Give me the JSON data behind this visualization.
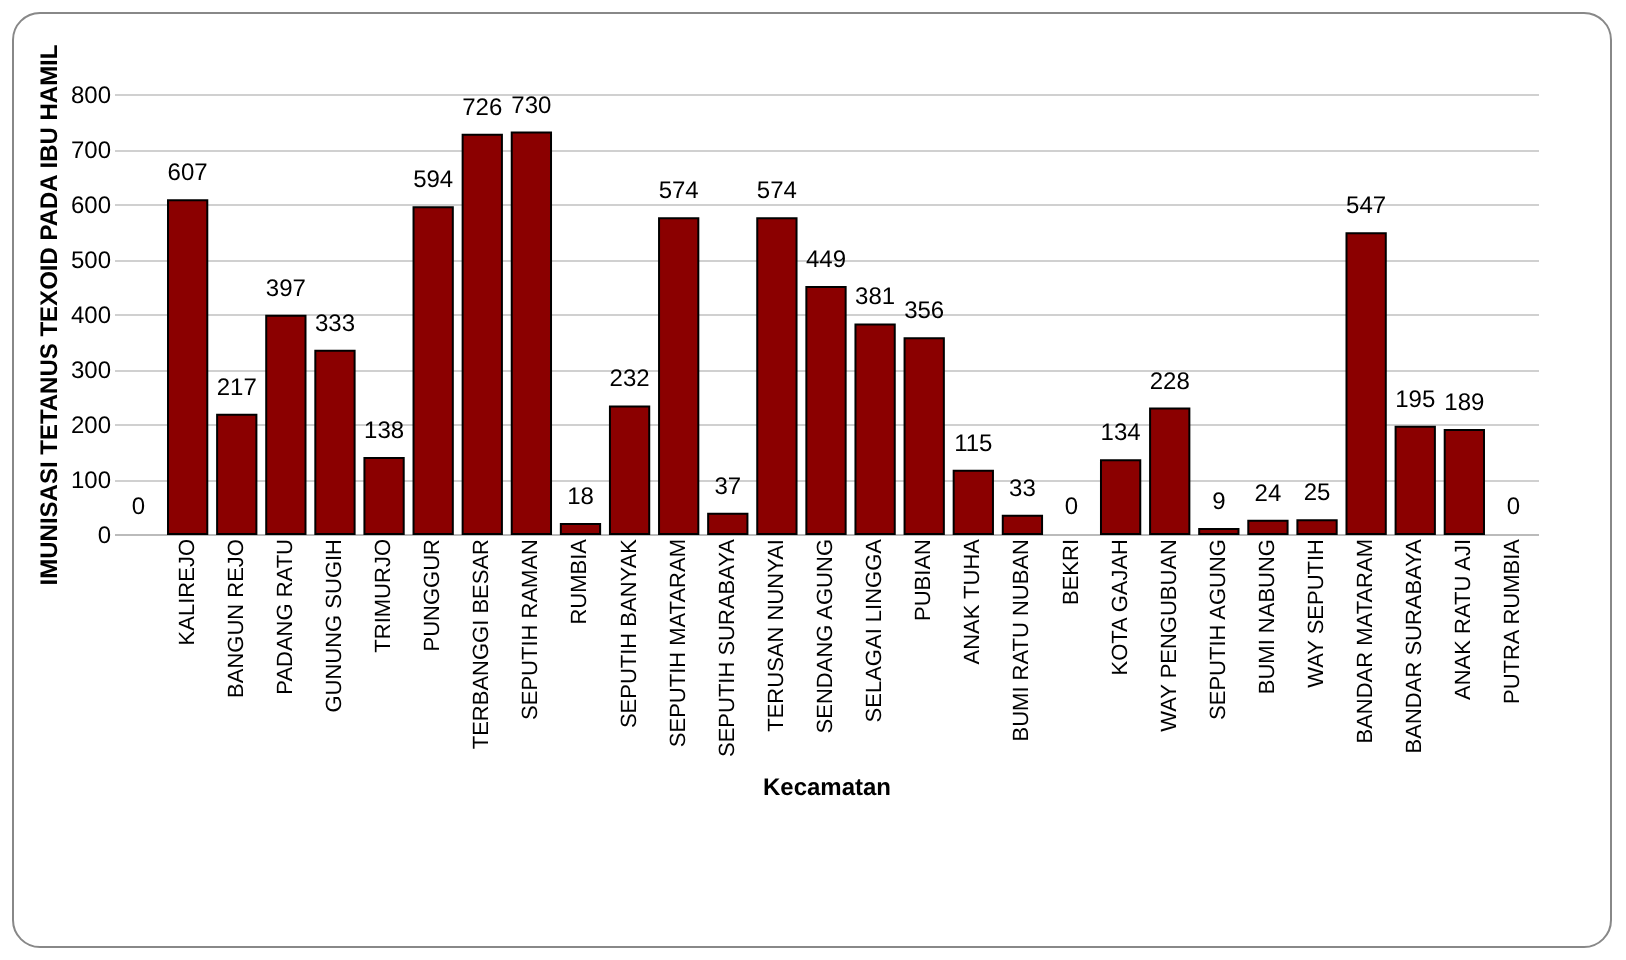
{
  "chart_data": {
    "type": "bar",
    "xlabel": "Kecamatan",
    "ylabel": "IMUNISASI TETANUS TEXOID PADA IBU HAMIL",
    "categories": [
      null,
      "KALIREJO",
      "BANGUN REJO",
      "PADANG RATU",
      "GUNUNG SUGIH",
      "TRIMURJO",
      "PUNGGUR",
      "TERBANGGI BESAR",
      "SEPUTIH RAMAN",
      "RUMBIA",
      "SEPUTIH BANYAK",
      "SEPUTIH MATARAM",
      "SEPUTIH SURABAYA",
      "TERUSAN NUNYAI",
      "SENDANG AGUNG",
      "SELAGAI LINGGA",
      "PUBIAN",
      "ANAK TUHA",
      "BUMI RATU NUBAN",
      "BEKRI",
      "KOTA GAJAH",
      "WAY PENGUBUAN",
      "SEPUTIH AGUNG",
      "BUMI NABUNG",
      "WAY SEPUTIH",
      "BANDAR MATARAM",
      "BANDAR SURABAYA",
      "ANAK RATU AJI",
      "PUTRA RUMBIA"
    ],
    "values": [
      0,
      607,
      217,
      397,
      333,
      138,
      594,
      726,
      730,
      18,
      232,
      574,
      37,
      574,
      449,
      381,
      356,
      115,
      33,
      0,
      134,
      228,
      9,
      24,
      25,
      547,
      195,
      189,
      0
    ],
    "color": "#8b0000",
    "ylim": [
      0,
      800
    ],
    "yticks": [
      0,
      100,
      200,
      300,
      400,
      500,
      600,
      700,
      800
    ],
    "grid": "y",
    "data_labels": true
  }
}
